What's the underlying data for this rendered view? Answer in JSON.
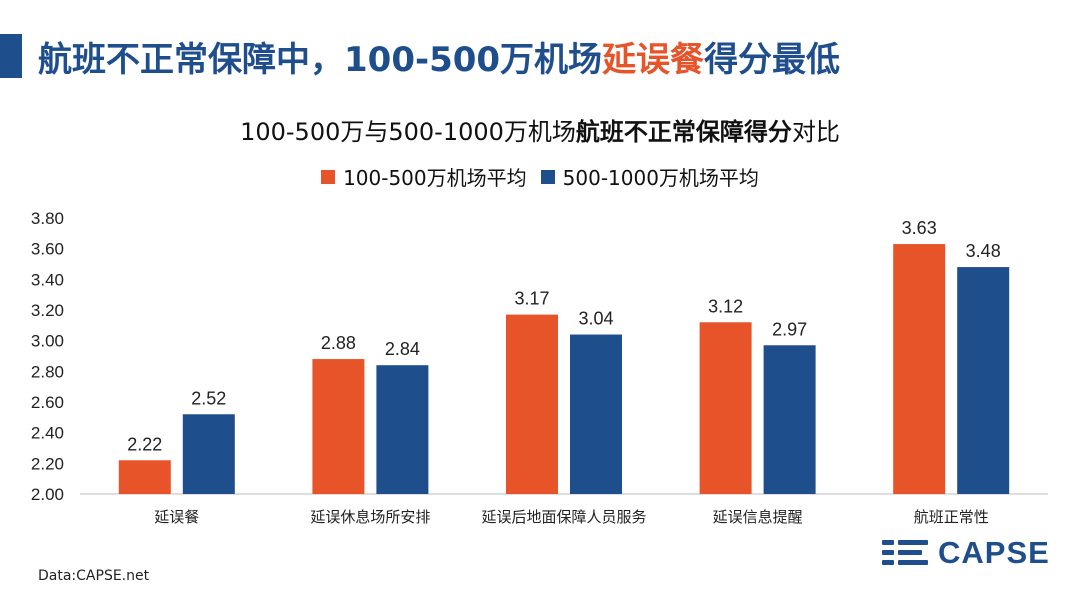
{
  "header": {
    "title_part1": "航班不正常保障中，100-500万机场",
    "title_highlight": "延误餐",
    "title_part2": "得分最低",
    "accent_color": "#1f4e8c",
    "highlight_color": "#e8542a"
  },
  "footer": {
    "source": "Data:CAPSE.net",
    "logo_text": "CAPSE"
  },
  "chart_data": {
    "type": "bar",
    "title_prefix": "100-500万与500-1000万机场",
    "title_bold": "航班不正常保障得分",
    "title_suffix": "对比",
    "categories": [
      "延误餐",
      "延误休息场所安排",
      "延误后地面保障人员服务",
      "延误信息提醒",
      "航班正常性"
    ],
    "series": [
      {
        "name": "100-500万机场平均",
        "color": "#e8542a",
        "values": [
          2.22,
          2.88,
          3.17,
          3.12,
          3.63
        ]
      },
      {
        "name": "500-1000万机场平均",
        "color": "#1f4e8c",
        "values": [
          2.52,
          2.84,
          3.04,
          2.97,
          3.48
        ]
      }
    ],
    "y_ticks": [
      "2.00",
      "2.20",
      "2.40",
      "2.60",
      "2.80",
      "3.00",
      "3.20",
      "3.40",
      "3.60",
      "3.80"
    ],
    "ylim": [
      2.0,
      3.8
    ],
    "legend_position": "top-center",
    "grid": false
  }
}
